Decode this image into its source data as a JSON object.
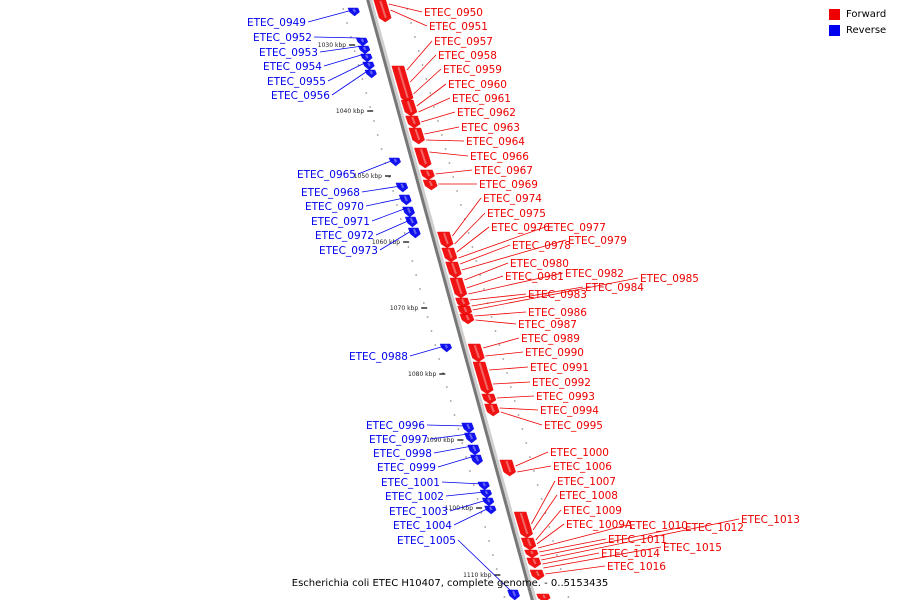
{
  "caption": "Escherichia coli ETEC H10407, complete genome. - 0..5153435",
  "legend": [
    {
      "label": "Forward",
      "color": "#ee0000"
    },
    {
      "label": "Reverse",
      "color": "#0000ee"
    }
  ],
  "ticks": [
    "1030 kbp",
    "1040 kbp",
    "1050 kbp",
    "1060 kbp",
    "1070 kbp",
    "1080 kbp",
    "1090 kbp",
    "1100 kbp",
    "1110 kbp"
  ],
  "reverse_genes": [
    "ETEC_0949",
    "ETEC_0952",
    "ETEC_0953",
    "ETEC_0954",
    "ETEC_0955",
    "ETEC_0956",
    "ETEC_0965",
    "ETEC_0968",
    "ETEC_0970",
    "ETEC_0971",
    "ETEC_0972",
    "ETEC_0973",
    "ETEC_0988",
    "ETEC_0996",
    "ETEC_0997",
    "ETEC_0998",
    "ETEC_0999",
    "ETEC_1001",
    "ETEC_1002",
    "ETEC_1003",
    "ETEC_1004",
    "ETEC_1005"
  ],
  "forward_genes": [
    "ETEC_0950",
    "ETEC_0951",
    "ETEC_0957",
    "ETEC_0958",
    "ETEC_0959",
    "ETEC_0960",
    "ETEC_0961",
    "ETEC_0962",
    "ETEC_0963",
    "ETEC_0964",
    "ETEC_0966",
    "ETEC_0967",
    "ETEC_0969",
    "ETEC_0974",
    "ETEC_0975",
    "ETEC_0976",
    "ETEC_0977",
    "ETEC_0978",
    "ETEC_0979",
    "ETEC_0980",
    "ETEC_0981",
    "ETEC_0982",
    "ETEC_0983",
    "ETEC_0984",
    "ETEC_0985",
    "ETEC_0986",
    "ETEC_0987",
    "ETEC_0989",
    "ETEC_0990",
    "ETEC_0991",
    "ETEC_0992",
    "ETEC_0993",
    "ETEC_0994",
    "ETEC_0995",
    "ETEC_1000",
    "ETEC_1006",
    "ETEC_1007",
    "ETEC_1008",
    "ETEC_1009",
    "ETEC_1009A",
    "ETEC_1010",
    "ETEC_1011",
    "ETEC_1012",
    "ETEC_1013",
    "ETEC_1014",
    "ETEC_1015",
    "ETEC_1016"
  ]
}
